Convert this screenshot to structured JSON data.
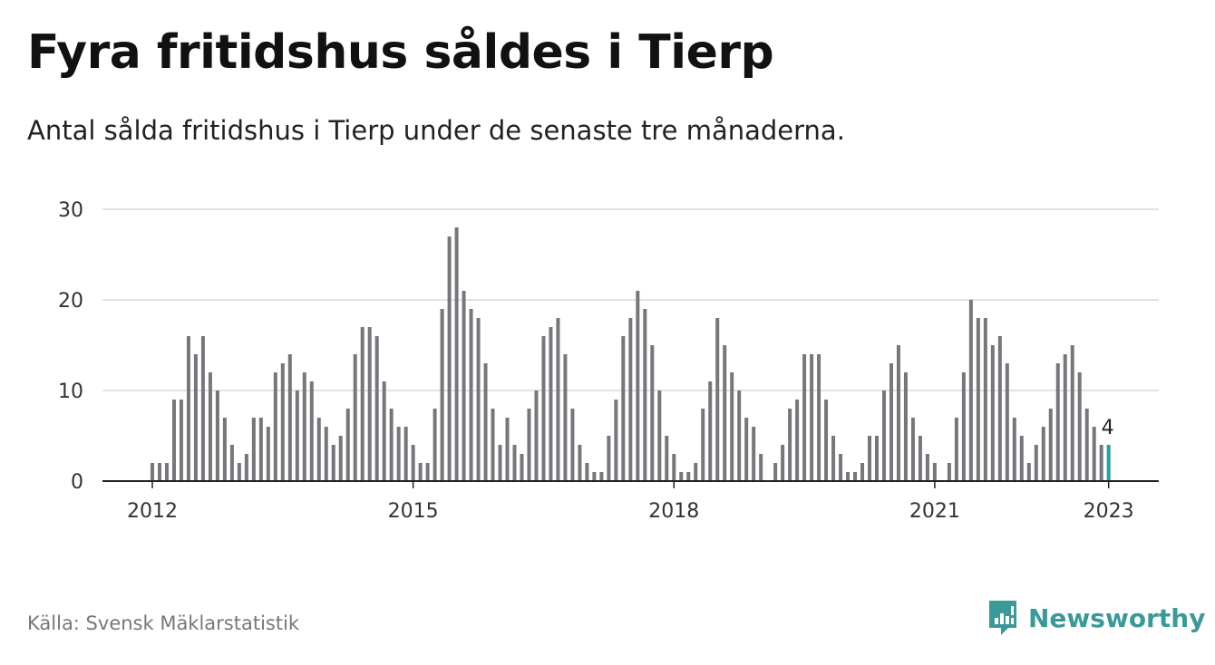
{
  "title": "Fyra fritidshus såldes i Tierp",
  "subtitle": "Antal sålda fritidshus i Tierp under de senaste tre månaderna.",
  "source": "Källa: Svensk Mäklarstatistik",
  "brand": {
    "name": "Newsworthy",
    "icon": "newsworthy-logo-icon"
  },
  "colors": {
    "bar": "#77767b",
    "highlight": "#1aa3a3",
    "grid": "#d9d9d9",
    "axis": "#222222"
  },
  "chart_data": {
    "type": "bar",
    "title": "",
    "xlabel": "",
    "ylabel": "",
    "ylim": [
      0,
      30
    ],
    "yticks": [
      0,
      10,
      20,
      30
    ],
    "xticks": [
      "2012",
      "2015",
      "2018",
      "2021",
      "2023"
    ],
    "grid": true,
    "start": "2012-01",
    "frequency": "monthly",
    "values": [
      2,
      2,
      2,
      9,
      9,
      16,
      14,
      16,
      12,
      10,
      7,
      4,
      2,
      3,
      7,
      7,
      6,
      12,
      13,
      14,
      10,
      12,
      11,
      7,
      6,
      4,
      5,
      8,
      14,
      17,
      17,
      16,
      11,
      8,
      6,
      6,
      4,
      2,
      2,
      8,
      19,
      27,
      28,
      21,
      19,
      18,
      13,
      8,
      4,
      7,
      4,
      3,
      8,
      10,
      16,
      17,
      18,
      14,
      8,
      4,
      2,
      1,
      1,
      5,
      9,
      16,
      18,
      21,
      19,
      15,
      10,
      5,
      3,
      1,
      1,
      2,
      8,
      11,
      18,
      15,
      12,
      10,
      7,
      6,
      3,
      0,
      2,
      4,
      8,
      9,
      14,
      14,
      14,
      9,
      5,
      3,
      1,
      1,
      2,
      5,
      5,
      10,
      13,
      15,
      12,
      7,
      5,
      3,
      2,
      0,
      2,
      7,
      12,
      20,
      18,
      18,
      15,
      16,
      13,
      7,
      5,
      2,
      4,
      6,
      8,
      13,
      14,
      15,
      12,
      8,
      6,
      4,
      4
    ],
    "highlight_label": "4"
  }
}
